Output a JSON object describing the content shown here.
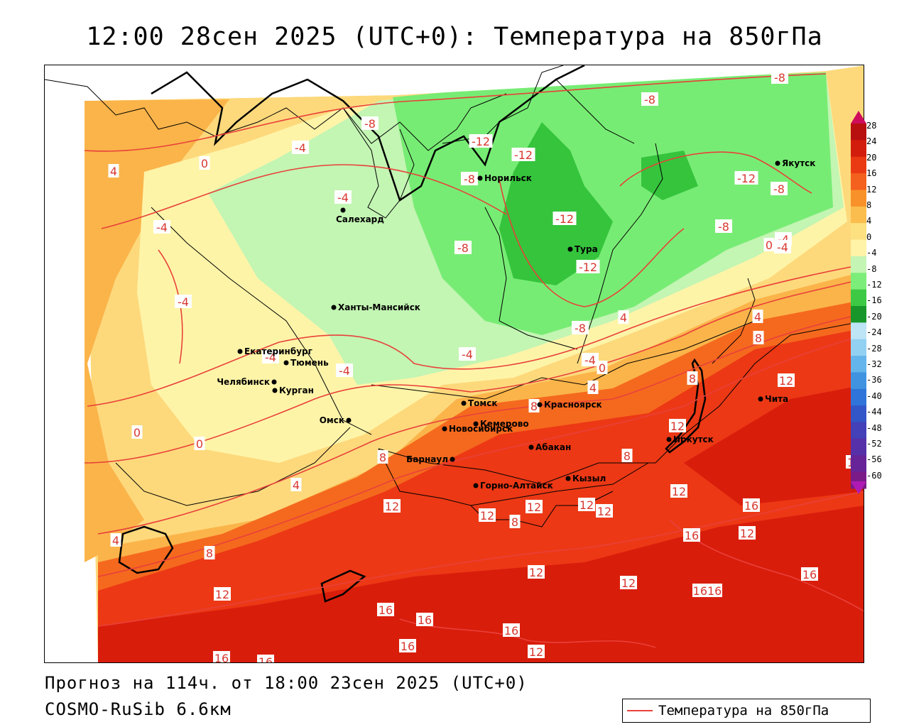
{
  "title": "12:00 28сен 2025 (UTC+0): Температура на 850гПа",
  "forecast_line": "Прогноз на 114ч. от 18:00 23сен 2025 (UTC+0)",
  "model_line": "COSMO-RuSib 6.6км",
  "legend": {
    "label": "Температура на 850гПа",
    "line_color": "#e8413a"
  },
  "colors": {
    "band_16": "#d91d0b",
    "band_12": "#ec3815",
    "band_8": "#f5691e",
    "band_4": "#fbb44a",
    "band_0": "#fdd97c",
    "band_m4": "#fef4a8",
    "band_m8": "#c3f5b3",
    "band_m12": "#77ec74",
    "band_m16": "#35c43c",
    "isoline": "#e8413a"
  },
  "color_scale": {
    "ticks": [
      "28",
      "24",
      "20",
      "16",
      "12",
      "8",
      "4",
      "0",
      "-4",
      "-8",
      "-12",
      "-16",
      "-20",
      "-24",
      "-28",
      "-32",
      "-36",
      "-40",
      "-44",
      "-48",
      "-52",
      "-56",
      "-60"
    ],
    "colors": [
      "#cf0d5a",
      "#b80f0f",
      "#d21d0c",
      "#ea3a14",
      "#f4601d",
      "#f89129",
      "#fbbd4d",
      "#fde07f",
      "#fef3a7",
      "#c4f5b4",
      "#7ded7a",
      "#3ec945",
      "#19962a",
      "#bde5f5",
      "#93d1f2",
      "#64b5ec",
      "#3f93e0",
      "#2f74d8",
      "#3256c8",
      "#4340b8",
      "#5630a8",
      "#672498",
      "#7a1b88",
      "#b01ab4"
    ]
  },
  "cities": [
    {
      "name": "Норильск"
    },
    {
      "name": "Салехард"
    },
    {
      "name": "Якутск"
    },
    {
      "name": "Тура"
    },
    {
      "name": "Ханты-Мансийск"
    },
    {
      "name": "Екатеринбург"
    },
    {
      "name": "Тюмень"
    },
    {
      "name": "Челябинск"
    },
    {
      "name": "Курган"
    },
    {
      "name": "Омск"
    },
    {
      "name": "Томск"
    },
    {
      "name": "Красноярск"
    },
    {
      "name": "Новосибирск"
    },
    {
      "name": "Кемерово"
    },
    {
      "name": "Абакан"
    },
    {
      "name": "Барнаул"
    },
    {
      "name": "Горно-Алтайск"
    },
    {
      "name": "Кызыл"
    },
    {
      "name": "Иркутск"
    },
    {
      "name": "Чита"
    }
  ],
  "isoline_labels": [
    "-8",
    "-8",
    "-8",
    "-8",
    "-8",
    "-8",
    "-8",
    "-8",
    "-12",
    "-12",
    "-12",
    "-12",
    "-12",
    "-4",
    "-4",
    "-4",
    "-4",
    "-4",
    "-4",
    "-4",
    "-4",
    "-4",
    "-4",
    "0",
    "0",
    "0",
    "0",
    "0",
    "4",
    "4",
    "4",
    "4",
    "4",
    "4",
    "8",
    "8",
    "8",
    "8",
    "8",
    "8",
    "8",
    "12",
    "12",
    "12",
    "12",
    "12",
    "12",
    "12",
    "12",
    "12",
    "12",
    "12",
    "12",
    "12",
    "12",
    "16",
    "16",
    "16",
    "16",
    "16",
    "16",
    "16",
    "16",
    "16",
    "1616"
  ]
}
